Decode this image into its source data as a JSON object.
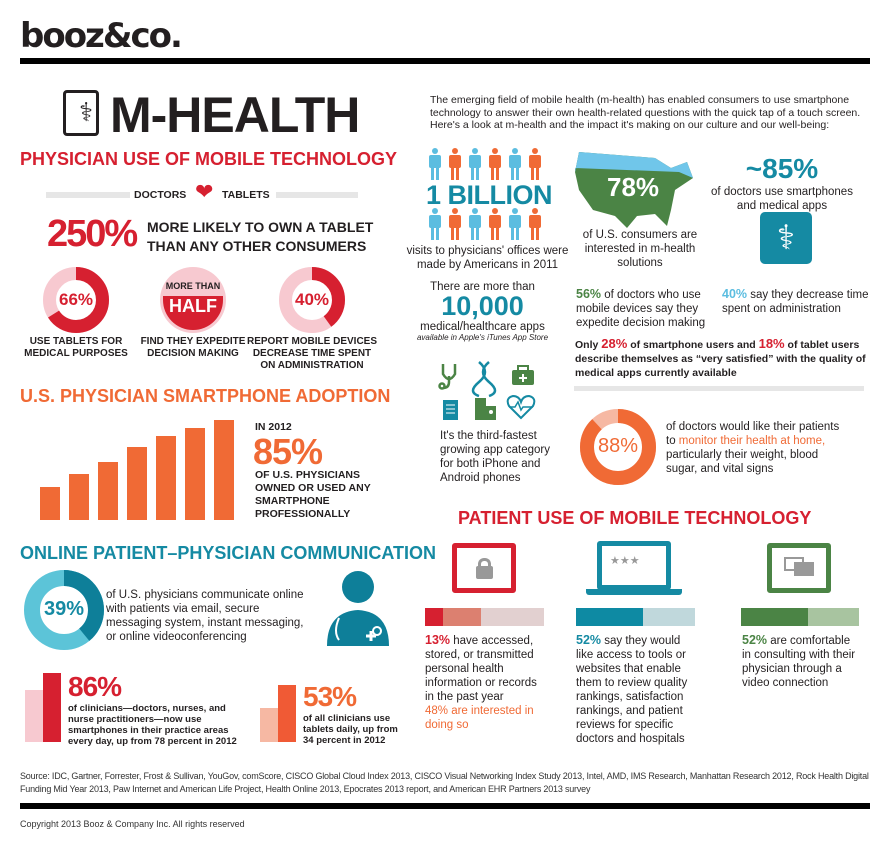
{
  "brand": "booz&co.",
  "title": "M-HEALTH",
  "intro": "The emerging field of mobile health (m-health) has enabled consumers to use smartphone technology to answer their own health-related questions with the quick tap of a touch screen. Here's a look at m-health and the impact it's making on our culture and our well-being:",
  "physician": {
    "heading": "PHYSICIAN USE OF MOBILE TECHNOLOGY",
    "doctors": "DOCTORS",
    "tablets": "TABLETS",
    "stat250": "250%",
    "stat250_text": "MORE LIKELY TO OWN A TABLET THAN ANY OTHER CONSUMERS",
    "donuts": [
      {
        "label": "66%",
        "value": 66,
        "caption": "USE TABLETS FOR MEDICAL PURPOSES"
      },
      {
        "label_top": "MORE THAN",
        "label": "HALF",
        "caption": "FIND THEY EXPEDITE DECISION MAKING"
      },
      {
        "label": "40%",
        "value": 40,
        "caption": "REPORT MOBILE DEVICES DECREASE TIME SPENT ON ADMINISTRATION"
      }
    ],
    "colors": {
      "red": "#d62030",
      "pink": "#f7c9d0"
    }
  },
  "smartphone": {
    "heading": "U.S. PHYSICIAN SMARTPHONE ADOPTION",
    "year": "IN 2012",
    "stat": "85%",
    "text": "OF U.S. PHYSICIANS OWNED OR USED ANY SMARTPHONE PROFESSIONALLY",
    "bar_levels": [
      28,
      39,
      49,
      62,
      71,
      78,
      85
    ],
    "color": "#f06a35"
  },
  "online": {
    "heading": "ONLINE PATIENT–PHYSICIAN COMMUNICATION",
    "stat": "39%",
    "value": 39,
    "text": "of U.S. physicians communicate online with patients via email, secure messaging system, instant messaging, or online videoconferencing",
    "stat86": "86%",
    "prev86": 78,
    "value86": 86,
    "text86": "of clinicians—doctors, nurses, and nurse practitioners—now use smartphones in their practice areas every day, up from 78 percent in 2012",
    "stat53": "53%",
    "prev53": 34,
    "value53": 53,
    "text53": "of all clinicians use tablets daily, up from 34 percent in 2012"
  },
  "facts": {
    "billion": "1 BILLION",
    "billion_text": "visits to physicians' offices were made by Americans in 2011",
    "map_stat": "78%",
    "map_text": "of U.S. consumers are interested in m-health solutions",
    "approx85": "~85%",
    "approx85_text": "of doctors use smartphones and medical apps",
    "apps_pre": "There are more than",
    "apps_count": "10,000",
    "apps_text": "medical/healthcare apps",
    "apps_note": "available in Apple's iTunes App Store",
    "s56": "56%",
    "s56_text": "of doctors who use mobile devices say they expedite decision making",
    "s40": "40%",
    "s40_text": "say they decrease time spent on administration",
    "sat_only": "Only",
    "sat28": "28%",
    "sat_mid": "of smartphone users and",
    "sat18": "18%",
    "sat_end": "of tablet users describe themselves as “very satisfied” with the quality of medical apps currently available",
    "category_text": "It's the third-fastest growing app category for both iPhone and Android phones",
    "s88": "88%",
    "s88_value": 88,
    "s88_pre": "of doctors would like their patients to",
    "s88_hl": "monitor their health at home,",
    "s88_post": "particularly their weight, blood sugar, and vital signs"
  },
  "patient": {
    "heading": "PATIENT USE OF MOBILE TECHNOLOGY",
    "cols": [
      {
        "stat": "13%",
        "text": "have accessed, stored, or transmitted personal health information or records in the past year",
        "extra": "48% are interested in doing so",
        "values": [
          13,
          48
        ]
      },
      {
        "stat": "52%",
        "text": "say they would like access to tools or websites that enable them to review quality rankings, satisfaction rankings, and patient reviews for specific doctors and hospitals",
        "values": [
          52
        ]
      },
      {
        "stat": "52%",
        "text": "are comfortable in consulting with their physician through a video connection",
        "values": [
          52
        ]
      }
    ]
  },
  "source": "Source: IDC, Gartner, Forrester, Frost & Sullivan, YouGov, comScore, CISCO Global Cloud Index 2013, CISCO Visual Networking Index Study 2013, Intel, AMD, IMS Research, Manhattan Research 2012, Rock Health Digital Funding Mid Year 2013, Paw Internet and American Life Project, Health Online 2013, Epocrates 2013 report, and American EHR Partners 2013 survey",
  "copyright": "Copyright 2013 Booz & Company Inc. All rights reserved"
}
